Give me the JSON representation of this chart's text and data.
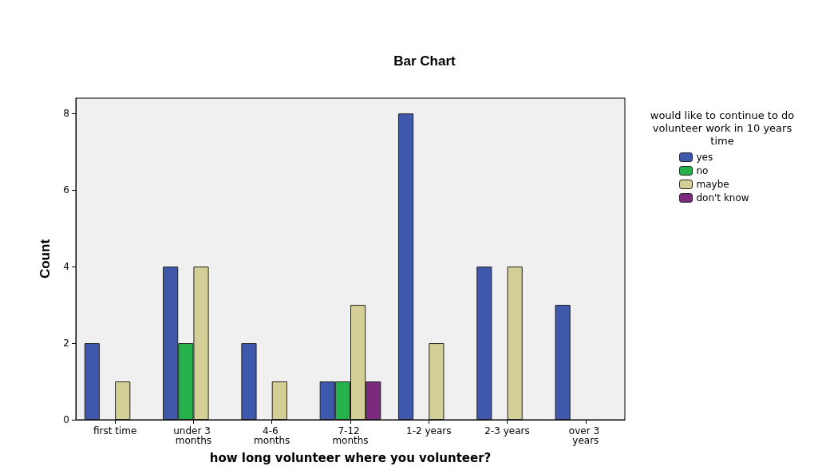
{
  "chart_data": {
    "type": "bar",
    "title": "Bar Chart",
    "xlabel": "how long volunteer where you volunteer?",
    "ylabel": "Count",
    "legend_title": "would like to continue to do volunteer work in 10 years time",
    "categories": [
      "first time",
      "under 3 months",
      "4-6 months",
      "7-12 months",
      "1-2 years",
      "2-3 years",
      "over 3 years"
    ],
    "series": [
      {
        "name": "yes",
        "color": "#3e58ac",
        "values": [
          2,
          4,
          2,
          1,
          8,
          4,
          3
        ]
      },
      {
        "name": "no",
        "color": "#26b24a",
        "values": [
          null,
          2,
          null,
          1,
          null,
          null,
          null
        ]
      },
      {
        "name": "maybe",
        "color": "#d4cf96",
        "values": [
          1,
          4,
          1,
          3,
          2,
          4,
          null
        ]
      },
      {
        "name": "don't know",
        "color": "#7b2a7e",
        "values": [
          null,
          null,
          null,
          1,
          null,
          null,
          null
        ]
      }
    ],
    "ylim": [
      0,
      8.4
    ],
    "yticks": [
      0,
      2,
      4,
      6,
      8
    ],
    "grid": false,
    "legend": "top right"
  }
}
